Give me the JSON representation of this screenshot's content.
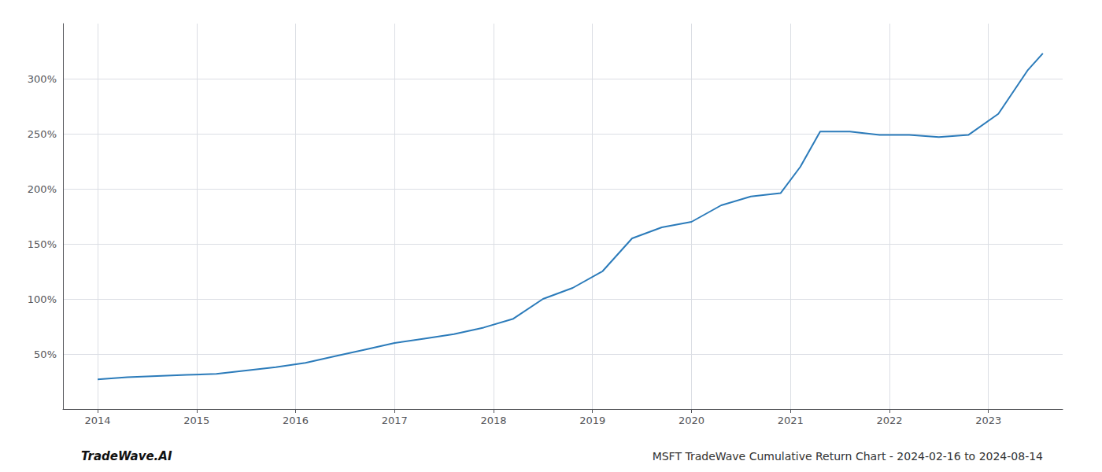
{
  "chart_data": {
    "type": "line",
    "title": "MSFT TradeWave Cumulative Return Chart - 2024-02-16 to 2024-08-14",
    "annotation": "TradeWave.AI",
    "color": "#2b7bba",
    "x": [
      2014.0,
      2014.3,
      2014.6,
      2014.9,
      2015.2,
      2015.5,
      2015.8,
      2016.1,
      2016.4,
      2016.7,
      2017.0,
      2017.3,
      2017.6,
      2017.9,
      2018.2,
      2018.5,
      2018.8,
      2019.1,
      2019.4,
      2019.7,
      2020.0,
      2020.3,
      2020.6,
      2020.9,
      2021.1,
      2021.3,
      2021.6,
      2021.9,
      2022.2,
      2022.5,
      2022.8,
      2023.1,
      2023.4,
      2023.55
    ],
    "values": [
      27,
      29,
      30,
      31,
      32,
      35,
      38,
      42,
      48,
      54,
      60,
      64,
      68,
      74,
      82,
      100,
      110,
      125,
      155,
      165,
      170,
      185,
      193,
      196,
      220,
      252,
      252,
      249,
      249,
      247,
      249,
      268,
      308,
      323
    ],
    "xlim": [
      2013.65,
      2023.75
    ],
    "ylim": [
      0,
      350
    ],
    "xticks": [
      2014,
      2015,
      2016,
      2017,
      2018,
      2019,
      2020,
      2021,
      2022,
      2023
    ],
    "yticks": [
      {
        "value": 50,
        "label": "50%"
      },
      {
        "value": 100,
        "label": "100%"
      },
      {
        "value": 150,
        "label": "150%"
      },
      {
        "value": 200,
        "label": "200%"
      },
      {
        "value": 250,
        "label": "250%"
      },
      {
        "value": 300,
        "label": "300%"
      }
    ],
    "grid": true
  }
}
